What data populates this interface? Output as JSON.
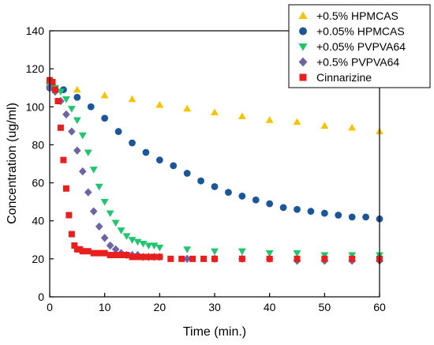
{
  "chart_data": {
    "type": "scatter",
    "title": "",
    "xlabel": "Time (min.)",
    "ylabel": "Concentration (ug/ml)",
    "xlim": [
      0,
      60
    ],
    "ylim": [
      0,
      140
    ],
    "x_ticks": [
      "0",
      "10",
      "20",
      "30",
      "40",
      "50",
      "60"
    ],
    "y_ticks": [
      "0",
      "20",
      "40",
      "60",
      "80",
      "100",
      "120",
      "140"
    ],
    "grid": false,
    "legend_position": "top-right",
    "series": [
      {
        "name": "+0.5% HPMCAS",
        "color": "#f5c400",
        "marker": "triangle-up",
        "x": [
          0,
          5,
          10,
          15,
          20,
          25,
          30,
          35,
          40,
          45,
          50,
          55,
          60
        ],
        "y": [
          112,
          109,
          106,
          104,
          101,
          99,
          97,
          95,
          93,
          92,
          90,
          89,
          87
        ]
      },
      {
        "name": "+0.05% HPMCAS",
        "color": "#1a5699",
        "marker": "circle",
        "x": [
          0,
          2.5,
          5,
          7.5,
          10,
          12.5,
          15,
          17.5,
          20,
          22.5,
          25,
          27.5,
          30,
          32.5,
          35,
          37.5,
          40,
          42.5,
          45,
          47.5,
          50,
          52.5,
          55,
          57.5,
          60
        ],
        "y": [
          110,
          109,
          105,
          100,
          94,
          87,
          81,
          76,
          72,
          69,
          65,
          61,
          58,
          55,
          53,
          51,
          49,
          47,
          46,
          45,
          44,
          43,
          42,
          42,
          41
        ]
      },
      {
        "name": "+0.05% PVPVA64",
        "color": "#20c56d",
        "marker": "triangle-down",
        "x": [
          0,
          1,
          2,
          3,
          4,
          5,
          6,
          7,
          8,
          9,
          10,
          11,
          12,
          13,
          14,
          15,
          16,
          17,
          18,
          19,
          20,
          25,
          30,
          35,
          40,
          45,
          50,
          55,
          60
        ],
        "y": [
          111,
          110,
          108,
          104,
          99,
          93,
          85,
          76,
          67,
          58,
          50,
          44,
          39,
          35,
          32,
          30,
          29,
          28,
          27,
          27,
          26,
          25,
          24,
          24,
          23,
          23,
          22,
          22,
          22
        ]
      },
      {
        "name": "+0.5% PVPVA64",
        "color": "#6f63a6",
        "marker": "diamond",
        "x": [
          0,
          1,
          2,
          3,
          4,
          5,
          6,
          7,
          8,
          9,
          10,
          11,
          12,
          13,
          14,
          15,
          16,
          17,
          18,
          19,
          20,
          25,
          30,
          35,
          40,
          45,
          50,
          55,
          60
        ],
        "y": [
          110,
          108,
          103,
          96,
          87,
          77,
          66,
          55,
          45,
          37,
          31,
          27,
          25,
          23,
          22,
          22,
          22,
          21,
          21,
          21,
          21,
          20,
          20,
          20,
          20,
          19,
          19,
          19,
          19
        ]
      },
      {
        "name": "Cinnarizine",
        "color": "#e8201d",
        "marker": "square",
        "x": [
          0,
          0.5,
          1,
          1.5,
          2,
          2.5,
          3,
          3.5,
          4,
          4.5,
          5,
          5.5,
          6,
          7,
          8,
          9,
          10,
          11,
          12,
          13,
          14,
          15,
          16,
          17,
          18,
          19,
          20,
          22,
          24,
          26,
          28,
          30,
          35,
          40,
          45,
          50,
          55,
          60
        ],
        "y": [
          114,
          113,
          109,
          103,
          89,
          72,
          57,
          43,
          33,
          27,
          25,
          25,
          24,
          24,
          23,
          23,
          23,
          22,
          22,
          22,
          22,
          21,
          21,
          21,
          21,
          21,
          21,
          20,
          20,
          20,
          20,
          20,
          20,
          20,
          20,
          20,
          20,
          20
        ]
      }
    ]
  }
}
